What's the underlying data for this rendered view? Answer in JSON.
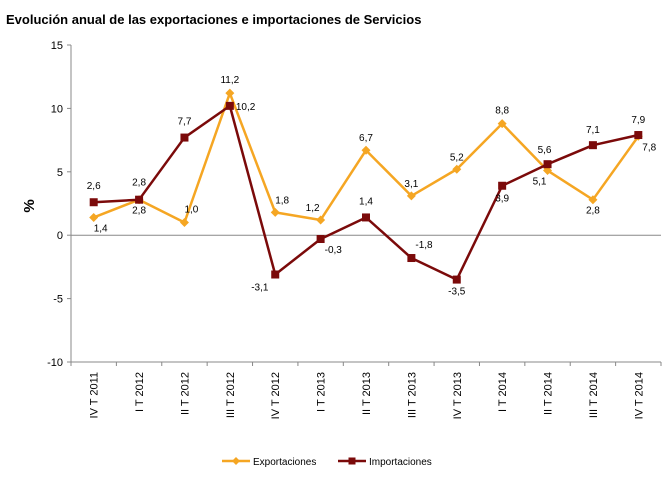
{
  "chart_data": {
    "type": "line",
    "title": "Evolución anual de las exportaciones e importaciones de Servicios",
    "ylabel": "%",
    "xlabel": "",
    "ylim": [
      -10,
      15
    ],
    "yticks": [
      "15",
      "10",
      "5",
      "0",
      "-5",
      "-10"
    ],
    "categories": [
      "IV T 2011",
      "I T 2012",
      "II T 2012",
      "III T 2012",
      "IV T 2012",
      "I T 2013",
      "II T 2013",
      "III T 2013",
      "IV T 2013",
      "I T 2014",
      "II T 2014",
      "III T 2014",
      "IV T 2014"
    ],
    "grid": false,
    "legend": "bottom",
    "series": [
      {
        "name": "Exportaciones",
        "color": "#F5A623",
        "marker": "diamond",
        "values": [
          1.4,
          2.8,
          1.0,
          11.2,
          1.8,
          1.2,
          6.7,
          3.1,
          5.2,
          8.8,
          5.1,
          2.8,
          7.8
        ],
        "labels": [
          "1,4",
          "2,8",
          "1,0",
          "11,2",
          "1,8",
          "1,2",
          "6,7",
          "3,1",
          "5,2",
          "8,8",
          "5,1",
          "2,8",
          "7,8"
        ]
      },
      {
        "name": "Importaciones",
        "color": "#7B0A0A",
        "marker": "square",
        "values": [
          2.6,
          2.8,
          7.7,
          10.2,
          -3.1,
          -0.3,
          1.4,
          -1.8,
          -3.5,
          3.9,
          5.6,
          7.1,
          7.9
        ],
        "labels": [
          "2,6",
          "2,8",
          "7,7",
          "10,2",
          "-3,1",
          "-0,3",
          "1,4",
          "-1,8",
          "-3,5",
          "3,9",
          "5,6",
          "7,1",
          "7,9"
        ]
      }
    ]
  }
}
